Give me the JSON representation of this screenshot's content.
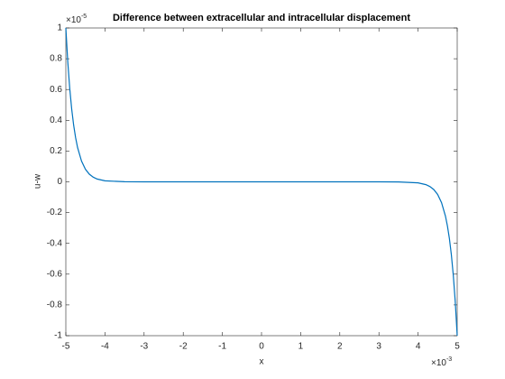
{
  "chart_data": {
    "type": "line",
    "title": "Difference between extracellular and intracellular displacement",
    "x_label": "x",
    "y_label": "u-w",
    "x_multiplier": {
      "base": "×10",
      "exponent": "-3"
    },
    "y_multiplier": {
      "base": "×10",
      "exponent": "-5"
    },
    "x": [
      -0.005,
      -0.00495,
      -0.0049,
      -0.00485,
      -0.0048,
      -0.00475,
      -0.0047,
      -0.0046,
      -0.0045,
      -0.0044,
      -0.0043,
      -0.0042,
      -0.004,
      -0.0035,
      -0.003,
      -0.002,
      -0.001,
      0,
      0.001,
      0.002,
      0.003,
      0.0035,
      0.004,
      0.0042,
      0.0043,
      0.0044,
      0.0045,
      0.0046,
      0.0047,
      0.00475,
      0.0048,
      0.00485,
      0.0049,
      0.00495,
      0.005
    ],
    "series": [
      {
        "name": "u-w",
        "color": "#0072bd",
        "values": [
          1e-05,
          7.788e-06,
          6.065e-06,
          4.724e-06,
          3.679e-06,
          2.865e-06,
          2.231e-06,
          1.353e-06,
          8.21e-07,
          4.98e-07,
          3.02e-07,
          1.83e-07,
          6.7e-08,
          6e-09,
          0,
          0,
          0,
          0,
          0,
          0,
          0,
          -6e-09,
          -6.7e-08,
          -1.83e-07,
          -3.02e-07,
          -4.98e-07,
          -8.21e-07,
          -1.353e-06,
          -2.231e-06,
          -2.865e-06,
          -3.679e-06,
          -4.724e-06,
          -6.065e-06,
          -7.788e-06,
          -1e-05
        ]
      }
    ],
    "xlim": [
      -0.005,
      0.005
    ],
    "xticks": [
      {
        "value": -0.005,
        "label": "-5"
      },
      {
        "value": -0.004,
        "label": "-4"
      },
      {
        "value": -0.003,
        "label": "-3"
      },
      {
        "value": -0.002,
        "label": "-2"
      },
      {
        "value": -0.001,
        "label": "-1"
      },
      0,
      {
        "value": 0.001,
        "label": "1"
      },
      {
        "value": 0.002,
        "label": "2"
      },
      {
        "value": 0.003,
        "label": "3"
      },
      {
        "value": 0.004,
        "label": "4"
      },
      {
        "value": 0.005,
        "label": "5"
      }
    ],
    "ylim": [
      -1e-05,
      1e-05
    ],
    "yticks": [
      {
        "value": -1e-05,
        "label": "-1"
      },
      {
        "value": -8e-06,
        "label": "-0.8"
      },
      {
        "value": -6e-06,
        "label": "-0.6"
      },
      {
        "value": -4e-06,
        "label": "-0.4"
      },
      {
        "value": -2e-06,
        "label": "-0.2"
      },
      0,
      {
        "value": 2e-06,
        "label": "0.2"
      },
      {
        "value": 4e-06,
        "label": "0.4"
      },
      {
        "value": 6e-06,
        "label": "0.6"
      },
      {
        "value": 8e-06,
        "label": "0.8"
      },
      {
        "value": 1e-05,
        "label": "1"
      }
    ],
    "grid": false
  }
}
